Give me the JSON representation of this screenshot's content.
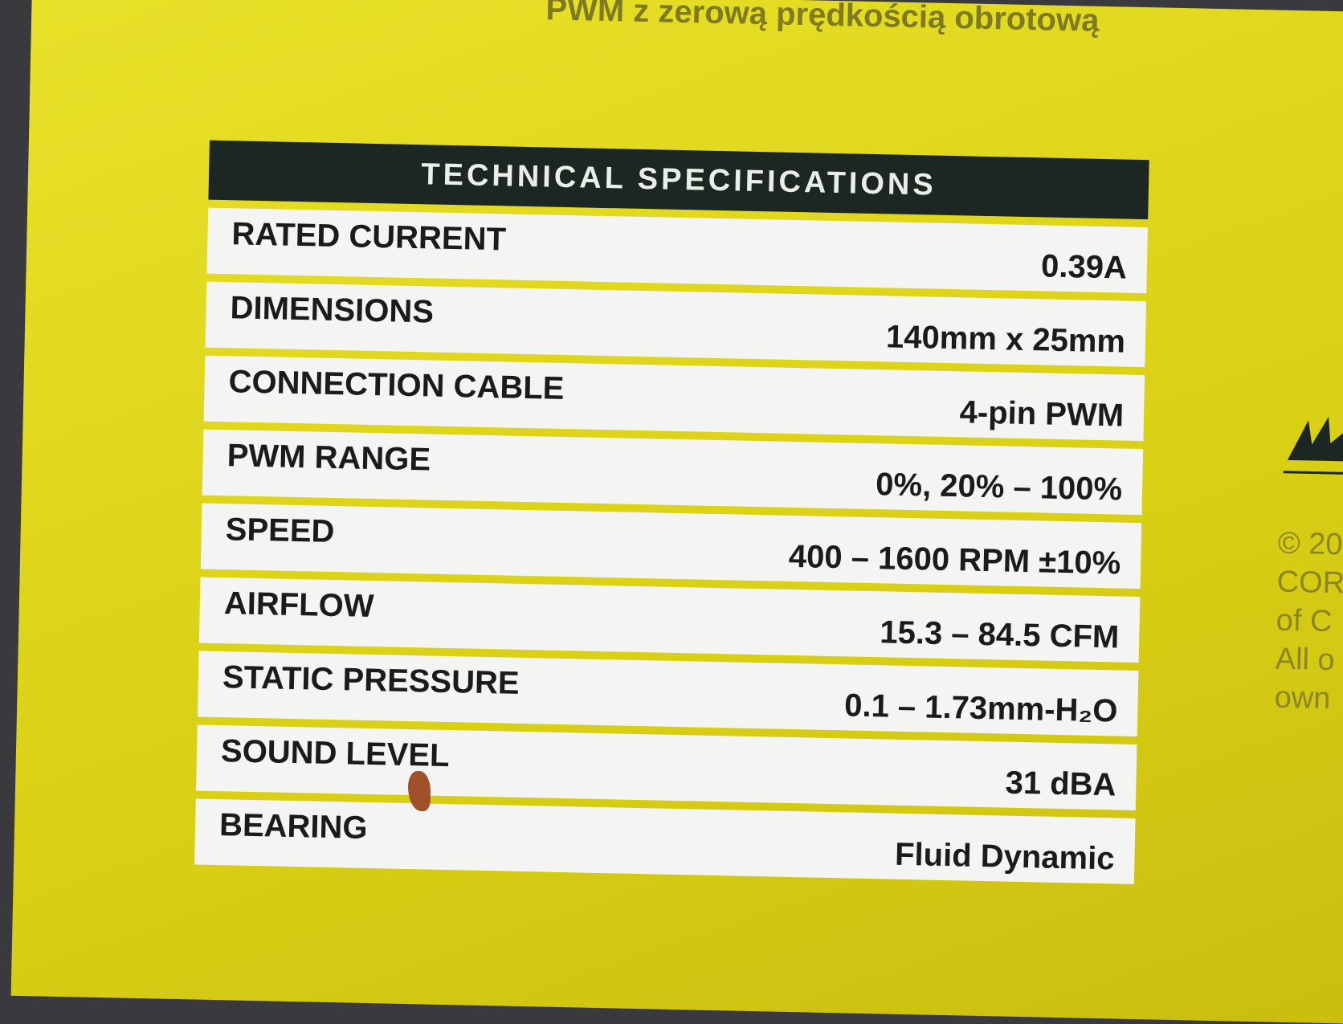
{
  "header": {
    "text": "PWM z zerową prędkością obrotową"
  },
  "table": {
    "title": "TECHNICAL SPECIFICATIONS",
    "rows": [
      [
        "RATED CURRENT",
        "0.39A"
      ],
      [
        "DIMENSIONS",
        "140mm x 25mm"
      ],
      [
        "CONNECTION CABLE",
        "4-pin PWM"
      ],
      [
        "PWM RANGE",
        "0%, 20% – 100%"
      ],
      [
        "SPEED",
        "400 – 1600 RPM ±10%"
      ],
      [
        "AIRFLOW",
        "15.3 – 84.5 CFM"
      ],
      [
        "STATIC PRESSURE",
        "0.1 – 1.73mm-H₂O"
      ],
      [
        "SOUND LEVEL",
        "31 dBA"
      ],
      [
        "BEARING",
        "Fluid Dynamic"
      ]
    ]
  },
  "side": {
    "lines": [
      "© 20",
      "COR",
      "of C",
      "All o",
      "own"
    ]
  }
}
